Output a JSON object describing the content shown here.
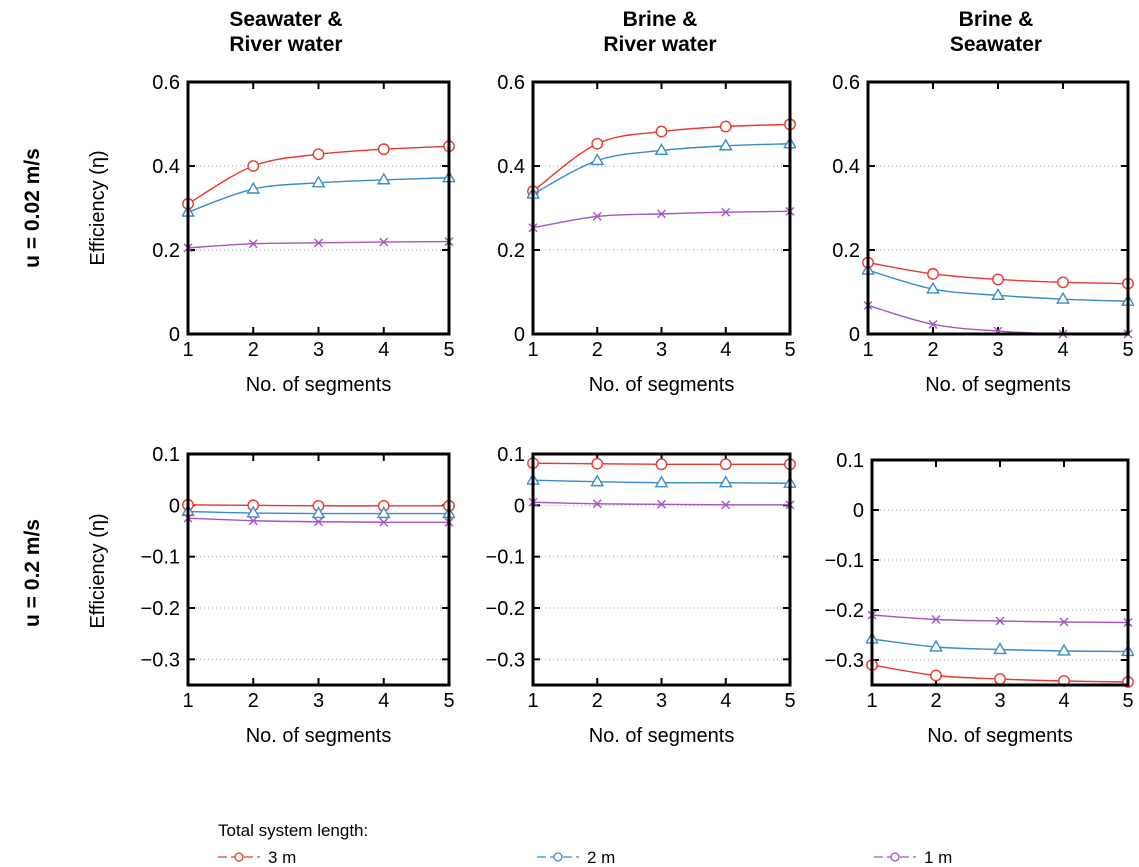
{
  "legend": {
    "title": "Total system length:",
    "entries": [
      {
        "label": "3 m",
        "color": "#e8382f",
        "marker": "circle"
      },
      {
        "label": "2 m",
        "color": "#3a8cc8",
        "marker": "circle"
      },
      {
        "label": "1 m",
        "color": "#a455c0",
        "marker": "circle"
      }
    ]
  },
  "row_labels": [
    "u = 0.02 m/s",
    "u = 0.2 m/s"
  ],
  "column_titles": [
    [
      "Seawater &",
      "River water"
    ],
    [
      "Brine &",
      "River water"
    ],
    [
      "Brine &",
      "Seawater"
    ]
  ],
  "chart_data": [
    {
      "type": "line",
      "row": 0,
      "col": 0,
      "xlabel": "No. of segments",
      "ylabel": "Efficiency (η)",
      "x": [
        1,
        2,
        3,
        4,
        5
      ],
      "xlim": [
        1,
        5
      ],
      "ylim": [
        0,
        0.6
      ],
      "yticks": [
        0,
        0.2,
        0.4,
        0.6
      ],
      "ytick_labels": [
        "0",
        "0.2",
        "0.4",
        "0.6"
      ],
      "grid": true,
      "series": [
        {
          "name": "3 m",
          "color": "#e8382f",
          "marker": "circle",
          "values": [
            0.31,
            0.4,
            0.428,
            0.44,
            0.447
          ]
        },
        {
          "name": "2 m",
          "color": "#3a8cc8",
          "marker": "triangle",
          "values": [
            0.29,
            0.345,
            0.36,
            0.367,
            0.372
          ]
        },
        {
          "name": "1 m",
          "color": "#a455c0",
          "marker": "x",
          "values": [
            0.205,
            0.215,
            0.217,
            0.219,
            0.22
          ]
        }
      ]
    },
    {
      "type": "line",
      "row": 0,
      "col": 1,
      "xlabel": "No. of segments",
      "ylabel": "",
      "x": [
        1,
        2,
        3,
        4,
        5
      ],
      "xlim": [
        1,
        5
      ],
      "ylim": [
        0,
        0.6
      ],
      "yticks": [
        0,
        0.2,
        0.4,
        0.6
      ],
      "ytick_labels": [
        "0",
        "0.2",
        "0.4",
        "0.6"
      ],
      "grid": true,
      "series": [
        {
          "name": "3 m",
          "color": "#e8382f",
          "marker": "circle",
          "values": [
            0.34,
            0.453,
            0.482,
            0.494,
            0.499
          ]
        },
        {
          "name": "2 m",
          "color": "#3a8cc8",
          "marker": "triangle",
          "values": [
            0.333,
            0.413,
            0.437,
            0.448,
            0.453
          ]
        },
        {
          "name": "1 m",
          "color": "#a455c0",
          "marker": "x",
          "values": [
            0.253,
            0.28,
            0.286,
            0.29,
            0.292
          ]
        }
      ]
    },
    {
      "type": "line",
      "row": 0,
      "col": 2,
      "xlabel": "No. of segments",
      "ylabel": "",
      "x": [
        1,
        2,
        3,
        4,
        5
      ],
      "xlim": [
        1,
        5
      ],
      "ylim": [
        0,
        0.6
      ],
      "yticks": [
        0,
        0.2,
        0.4,
        0.6
      ],
      "ytick_labels": [
        "0",
        "0.2",
        "0.4",
        "0.6"
      ],
      "grid": true,
      "series": [
        {
          "name": "3 m",
          "color": "#e8382f",
          "marker": "circle",
          "values": [
            0.17,
            0.143,
            0.13,
            0.123,
            0.12
          ]
        },
        {
          "name": "2 m",
          "color": "#3a8cc8",
          "marker": "triangle",
          "values": [
            0.152,
            0.107,
            0.092,
            0.083,
            0.078
          ]
        },
        {
          "name": "1 m",
          "color": "#a455c0",
          "marker": "x",
          "values": [
            0.068,
            0.023,
            0.007,
            0.0,
            0.0
          ]
        }
      ]
    },
    {
      "type": "line",
      "row": 1,
      "col": 0,
      "xlabel": "No. of segments",
      "ylabel": "Efficiency (η)",
      "x": [
        1,
        2,
        3,
        4,
        5
      ],
      "xlim": [
        1,
        5
      ],
      "ylim": [
        -0.35,
        0.1
      ],
      "yticks": [
        -0.3,
        -0.2,
        -0.1,
        0,
        0.1
      ],
      "ytick_labels": [
        "−0.3",
        "−0.2",
        "−0.1",
        "0",
        "0.1"
      ],
      "grid": true,
      "series": [
        {
          "name": "3 m",
          "color": "#e8382f",
          "marker": "circle",
          "values": [
            0.001,
            0.0,
            -0.001,
            -0.001,
            -0.001
          ]
        },
        {
          "name": "2 m",
          "color": "#3a8cc8",
          "marker": "triangle",
          "values": [
            -0.012,
            -0.015,
            -0.016,
            -0.016,
            -0.016
          ]
        },
        {
          "name": "1 m",
          "color": "#a455c0",
          "marker": "x",
          "values": [
            -0.025,
            -0.03,
            -0.032,
            -0.033,
            -0.033
          ]
        }
      ]
    },
    {
      "type": "line",
      "row": 1,
      "col": 1,
      "xlabel": "No. of segments",
      "ylabel": "",
      "x": [
        1,
        2,
        3,
        4,
        5
      ],
      "xlim": [
        1,
        5
      ],
      "ylim": [
        -0.35,
        0.1
      ],
      "yticks": [
        -0.3,
        -0.2,
        -0.1,
        0,
        0.1
      ],
      "ytick_labels": [
        "−0.3",
        "−0.2",
        "−0.1",
        "0",
        "0.1"
      ],
      "grid": true,
      "series": [
        {
          "name": "3 m",
          "color": "#e8382f",
          "marker": "circle",
          "values": [
            0.082,
            0.081,
            0.08,
            0.08,
            0.08
          ]
        },
        {
          "name": "2 m",
          "color": "#3a8cc8",
          "marker": "triangle",
          "values": [
            0.049,
            0.046,
            0.044,
            0.044,
            0.043
          ]
        },
        {
          "name": "1 m",
          "color": "#a455c0",
          "marker": "x",
          "values": [
            0.006,
            0.003,
            0.002,
            0.001,
            0.001
          ]
        }
      ]
    },
    {
      "type": "line",
      "row": 1,
      "col": 2,
      "xlabel": "No. of segments",
      "ylabel": "",
      "x": [
        1,
        2,
        3,
        4,
        5
      ],
      "xlim": [
        1,
        5
      ],
      "ylim": [
        -0.35,
        0.1
      ],
      "yticks": [
        -0.3,
        -0.2,
        -0.1,
        0,
        0.1
      ],
      "ytick_labels": [
        "−0.3",
        "−0.2",
        "−0.1",
        "0",
        "0.1"
      ],
      "grid": true,
      "series": [
        {
          "name": "3 m",
          "color": "#e8382f",
          "marker": "circle",
          "values": [
            -0.31,
            -0.331,
            -0.338,
            -0.342,
            -0.344
          ]
        },
        {
          "name": "2 m",
          "color": "#3a8cc8",
          "marker": "triangle",
          "values": [
            -0.258,
            -0.274,
            -0.279,
            -0.282,
            -0.283
          ]
        },
        {
          "name": "1 m",
          "color": "#a455c0",
          "marker": "x",
          "values": [
            -0.21,
            -0.219,
            -0.222,
            -0.224,
            -0.225
          ]
        }
      ]
    }
  ]
}
